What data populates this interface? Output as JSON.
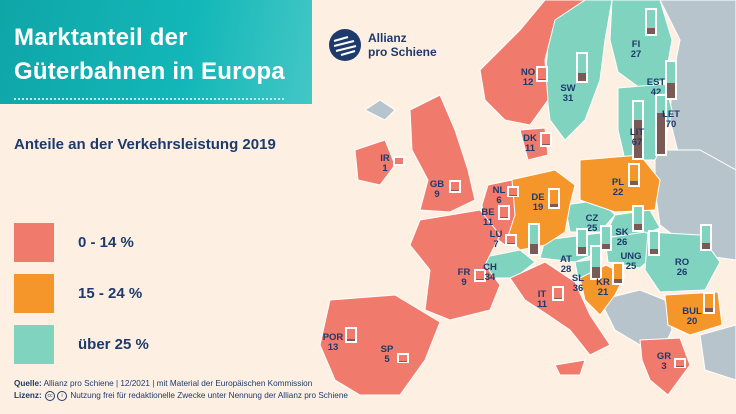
{
  "title": {
    "line1": "Marktanteil der",
    "line2": "Güterbahnen in Europa"
  },
  "subtitle": "Anteile an der Verkehrsleistung 2019",
  "logo": {
    "line1": "Allianz",
    "line2": "pro Schiene",
    "icon": "rail-lines-logo-icon"
  },
  "legend": [
    {
      "label": "0 - 14 %",
      "color": "#f07a6c"
    },
    {
      "label": "15 - 24 %",
      "color": "#f5962a"
    },
    {
      "label": "über 25 %",
      "color": "#7fd3bf"
    }
  ],
  "source": {
    "label": "Quelle:",
    "text": "Allianz pro Schiene | 12/2021 | mit Material der Europäischen Kommission"
  },
  "license": {
    "label": "Lizenz:",
    "text": "Nutzung frei für redaktionelle Zwecke unter Nennung der Allianz pro Schiene"
  },
  "colors": {
    "low": "#f07a6c",
    "mid": "#f5962a",
    "high": "#7fd3bf",
    "bar_fill": "#7a5a55",
    "neutral": "#b8c4cc",
    "sea": "#fdf0e3"
  },
  "countries": [
    {
      "code": "NO",
      "value": 12,
      "class": "low"
    },
    {
      "code": "SW",
      "value": 31,
      "class": "high"
    },
    {
      "code": "FI",
      "value": 27,
      "class": "high"
    },
    {
      "code": "EST",
      "value": 42,
      "class": "high"
    },
    {
      "code": "LET",
      "value": 70,
      "class": "high"
    },
    {
      "code": "LIT",
      "value": 67,
      "class": "high"
    },
    {
      "code": "DK",
      "value": 11,
      "class": "low"
    },
    {
      "code": "IR",
      "value": 1,
      "class": "low"
    },
    {
      "code": "GB",
      "value": 9,
      "class": "low"
    },
    {
      "code": "NL",
      "value": 6,
      "class": "low"
    },
    {
      "code": "BE",
      "value": 11,
      "class": "low"
    },
    {
      "code": "LU",
      "value": 7,
      "class": "low"
    },
    {
      "code": "DE",
      "value": 19,
      "class": "mid"
    },
    {
      "code": "PL",
      "value": 22,
      "class": "mid"
    },
    {
      "code": "CZ",
      "value": 25,
      "class": "high"
    },
    {
      "code": "SK",
      "value": 26,
      "class": "high"
    },
    {
      "code": "FR",
      "value": 9,
      "class": "low"
    },
    {
      "code": "CH",
      "value": 34,
      "class": "high"
    },
    {
      "code": "AT",
      "value": 28,
      "class": "high"
    },
    {
      "code": "UNG",
      "value": 25,
      "class": "high"
    },
    {
      "code": "SL",
      "value": 36,
      "class": "high"
    },
    {
      "code": "KR",
      "value": 21,
      "class": "mid"
    },
    {
      "code": "RO",
      "value": 26,
      "class": "high"
    },
    {
      "code": "IT",
      "value": 11,
      "class": "low"
    },
    {
      "code": "BUL",
      "value": 20,
      "class": "mid"
    },
    {
      "code": "POR",
      "value": 13,
      "class": "low"
    },
    {
      "code": "SP",
      "value": 5,
      "class": "low"
    },
    {
      "code": "GR",
      "value": 3,
      "class": "low"
    }
  ]
}
